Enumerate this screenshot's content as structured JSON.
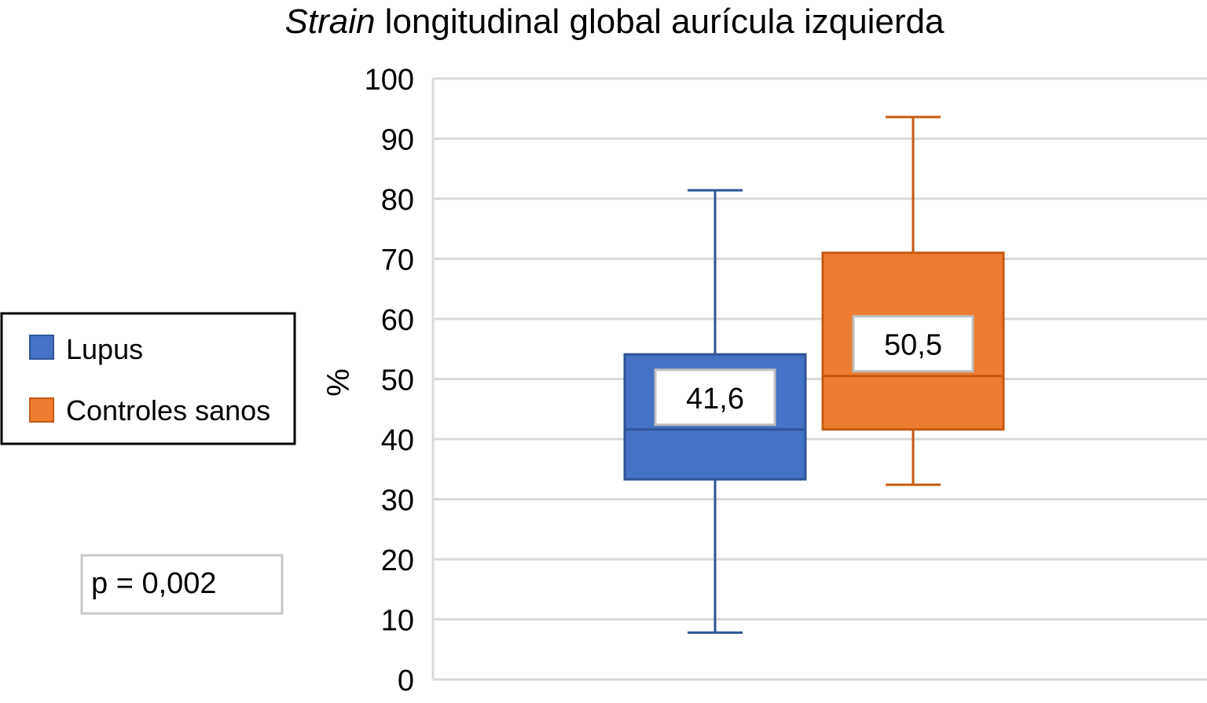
{
  "chart_data": {
    "type": "boxplot",
    "title_italic": "Strain",
    "title_rest": " longitudinal global aurícula izquierda",
    "ylabel": "%",
    "ylim": [
      0,
      100
    ],
    "yticks": [
      0,
      10,
      20,
      30,
      40,
      50,
      60,
      70,
      80,
      90,
      100
    ],
    "grid": true,
    "legend_position": "left",
    "series": [
      {
        "name": "Lupus",
        "color": "#4472C4",
        "edge": "#2F5597",
        "min": 7.8,
        "q1": 33.3,
        "median": 41.6,
        "q3": 54.1,
        "max": 81.4,
        "median_label": "41,6"
      },
      {
        "name": "Controles sanos",
        "color": "#ED7D31",
        "edge": "#C55A11",
        "min": 32.4,
        "q1": 41.6,
        "median": 50.5,
        "q3": 71.0,
        "max": 93.6,
        "median_label": "50,5"
      }
    ],
    "annotation": "p = 0,002"
  }
}
